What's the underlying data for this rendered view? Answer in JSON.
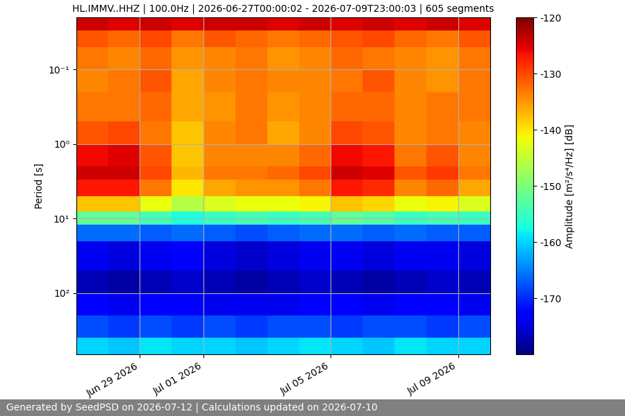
{
  "chart_data": {
    "type": "heatmap",
    "title": "HL.IMMV..HHZ | 100.0Hz | 2026-06-27T00:00:02 - 2026-07-09T23:00:03 | 605 segments",
    "y_label": "Period [s]",
    "footer": "Generated by SeedPSD on 2026-07-12 | Calculations updated on 2026-07-10",
    "log": "y",
    "grid": true,
    "x": [
      "2026-06-27",
      "2026-06-28",
      "2026-06-29",
      "2026-06-30",
      "2026-07-01",
      "2026-07-02",
      "2026-07-03",
      "2026-07-04",
      "2026-07-05",
      "2026-07-06",
      "2026-07-07",
      "2026-07-08",
      "2026-07-09",
      "2026-07-10"
    ],
    "y": [
      0.02,
      0.03,
      0.05,
      0.1,
      0.2,
      0.5,
      1,
      2,
      3,
      5,
      8,
      12,
      20,
      50,
      100,
      200,
      400,
      665
    ],
    "xlim": [
      "2026-06-27",
      "2026-07-10"
    ],
    "ylim": [
      665,
      0.02
    ],
    "xticks": [
      {
        "value": "2026-06-29",
        "label": "Jun 29 2026"
      },
      {
        "value": "2026-07-01",
        "label": "Jul 01 2026"
      },
      {
        "value": "2026-07-05",
        "label": "Jul 05 2026"
      },
      {
        "value": "2026-07-09",
        "label": "Jul 09 2026"
      }
    ],
    "yticks": [
      {
        "value": 0.1,
        "label": "10⁻¹"
      },
      {
        "value": 1,
        "label": "10⁰"
      },
      {
        "value": 10,
        "label": "10¹"
      },
      {
        "value": 100,
        "label": "10²"
      }
    ],
    "cells": [
      [
        -124,
        -125,
        -124,
        -125,
        -124,
        -124,
        -125,
        -124,
        -125,
        -124,
        -125,
        -124,
        -125
      ],
      [
        -131,
        -132,
        -130,
        -133,
        -131,
        -132,
        -133,
        -132,
        -131,
        -130,
        -132,
        -133,
        -131
      ],
      [
        -133,
        -134,
        -132,
        -135,
        -134,
        -133,
        -135,
        -134,
        -132,
        -133,
        -134,
        -135,
        -133
      ],
      [
        -134,
        -133,
        -131,
        -136,
        -134,
        -133,
        -134,
        -134,
        -133,
        -131,
        -134,
        -135,
        -133
      ],
      [
        -133,
        -133,
        -132,
        -136,
        -135,
        -133,
        -135,
        -134,
        -132,
        -132,
        -134,
        -133,
        -133
      ],
      [
        -131,
        -130,
        -133,
        -138,
        -134,
        -133,
        -136,
        -134,
        -130,
        -131,
        -134,
        -133,
        -134
      ],
      [
        -126,
        -125,
        -131,
        -138,
        -134,
        -134,
        -134,
        -132,
        -126,
        -127,
        -133,
        -131,
        -134
      ],
      [
        -124,
        -124,
        -130,
        -137,
        -133,
        -133,
        -132,
        -130,
        -124,
        -125,
        -131,
        -129,
        -133
      ],
      [
        -127,
        -127,
        -133,
        -140,
        -136,
        -135,
        -135,
        -133,
        -127,
        -128,
        -134,
        -132,
        -136
      ],
      [
        -138,
        -138,
        -142,
        -146,
        -143,
        -142,
        -142,
        -141,
        -138,
        -139,
        -142,
        -141,
        -143
      ],
      [
        -152,
        -152,
        -154,
        -157,
        -155,
        -154,
        -155,
        -154,
        -152,
        -153,
        -155,
        -154,
        -155
      ],
      [
        -166,
        -166,
        -167,
        -166,
        -167,
        -168,
        -167,
        -166,
        -166,
        -167,
        -166,
        -167,
        -167
      ],
      [
        -174,
        -175,
        -174,
        -173,
        -175,
        -176,
        -175,
        -174,
        -174,
        -175,
        -174,
        -174,
        -175
      ],
      [
        -177,
        -178,
        -177,
        -176,
        -177,
        -178,
        -177,
        -176,
        -177,
        -178,
        -177,
        -176,
        -177
      ],
      [
        -173,
        -174,
        -173,
        -173,
        -174,
        -174,
        -174,
        -173,
        -173,
        -174,
        -173,
        -173,
        -174
      ],
      [
        -168,
        -169,
        -168,
        -169,
        -168,
        -169,
        -168,
        -168,
        -169,
        -168,
        -168,
        -169,
        -168
      ],
      [
        -160,
        -161,
        -159,
        -160,
        -160,
        -161,
        -160,
        -159,
        -160,
        -161,
        -159,
        -160,
        -160
      ]
    ],
    "colorbar_label": "Amplitude [m²/s⁴/Hz] [dB]",
    "colorbar_range": [
      -180,
      -120
    ],
    "colorbar_ticks": [
      -170,
      -160,
      -150,
      -140,
      -130,
      -120
    ]
  }
}
